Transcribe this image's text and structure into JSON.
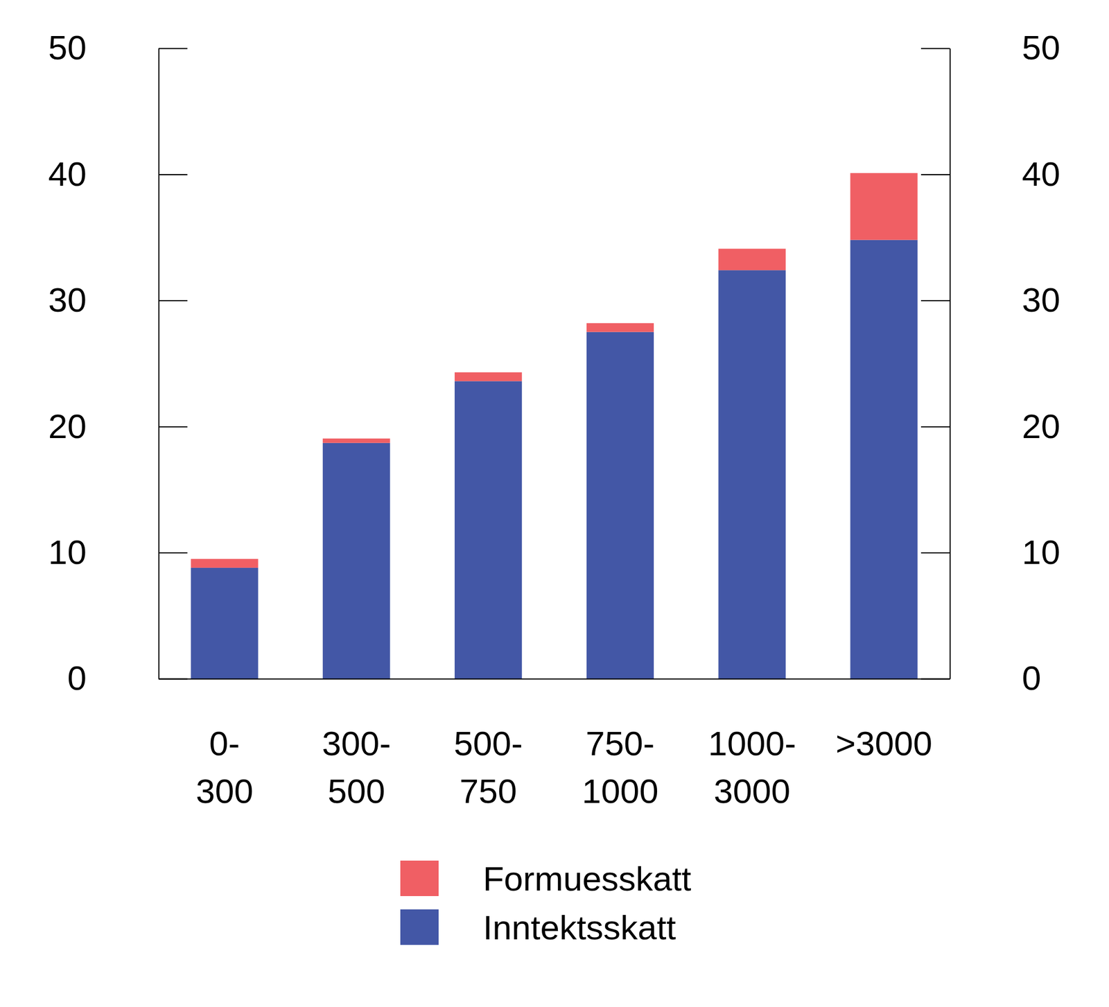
{
  "chart_data": {
    "type": "bar",
    "stacked": true,
    "legend": "bottom",
    "categories": [
      "0-300",
      "300-500",
      "500-750",
      "750-1000",
      "1000-3000",
      ">3000"
    ],
    "series": [
      {
        "name": "Inntektsskatt",
        "color": "#4357a6",
        "values": [
          8.8,
          18.7,
          23.6,
          27.5,
          32.4,
          34.8
        ]
      },
      {
        "name": "Formuesskatt",
        "color": "#f05f64",
        "values": [
          0.7,
          0.35,
          0.7,
          0.7,
          1.7,
          5.3
        ]
      }
    ],
    "ylim": [
      0,
      50
    ],
    "yticks": [
      0,
      10,
      20,
      30,
      40,
      50
    ]
  }
}
